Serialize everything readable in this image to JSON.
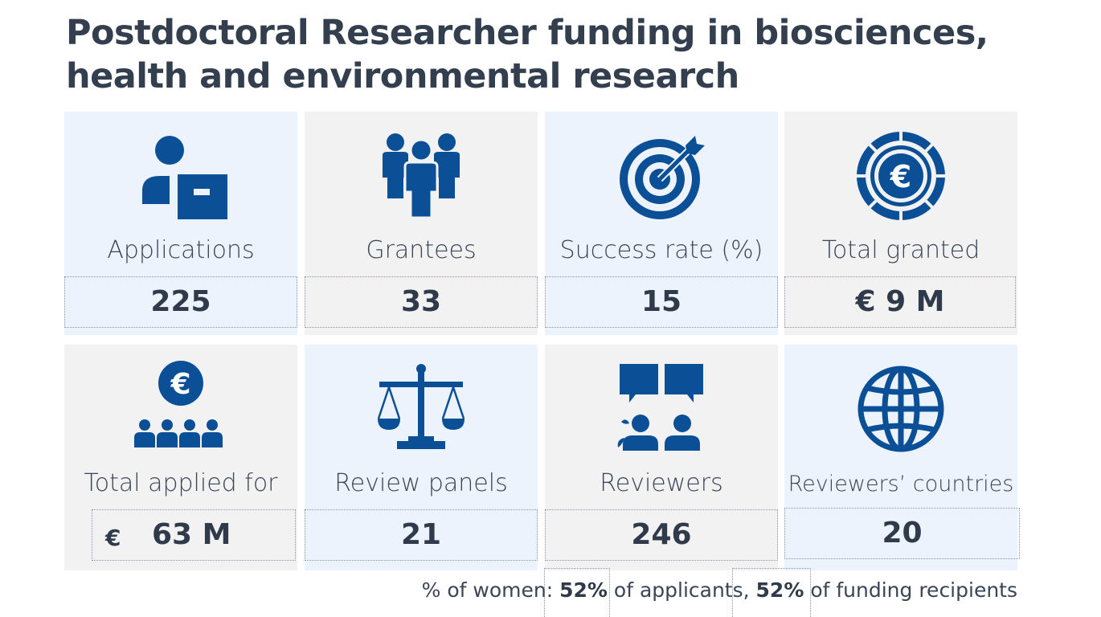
{
  "title": "Postdoctoral Researcher funding in biosciences, health and environmental research",
  "tiles": [
    {
      "label": "Applications",
      "value": "225",
      "icon": "applicant-icon"
    },
    {
      "label": "Grantees",
      "value": "33",
      "icon": "people-group-icon"
    },
    {
      "label": "Success rate (%)",
      "value": "15",
      "icon": "target-icon"
    },
    {
      "label": "Total granted",
      "value": "€ 9 M",
      "icon": "euro-coin-icon"
    },
    {
      "label": "Total applied for",
      "value_currency": "€",
      "value": "63 M",
      "icon": "euro-people-icon"
    },
    {
      "label": "Review panels",
      "value": "21",
      "icon": "scales-icon"
    },
    {
      "label": "Reviewers",
      "value": "246",
      "icon": "discussion-icon"
    },
    {
      "label": "Reviewers’ countries",
      "value": "20",
      "icon": "globe-icon"
    }
  ],
  "footer": {
    "prefix": "% of women: ",
    "applicants_pct": "52%",
    "applicants_text": " of applicants, ",
    "recipients_pct": "52%",
    "recipients_text": " of funding recipients"
  },
  "colors": {
    "icon": "#0b4f97",
    "tile_blue": "#ecf3fc",
    "tile_grey": "#f2f2f2",
    "text": "#333f4f"
  }
}
